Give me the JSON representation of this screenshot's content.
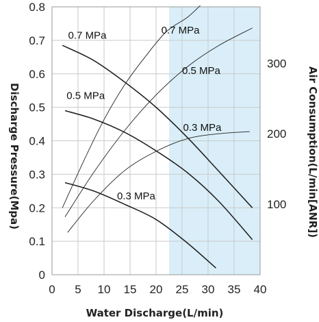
{
  "chart_data": {
    "type": "line",
    "xlabel": "Water Discharge(L/min)",
    "ylabel": "Discharge Pressure(Mpa)",
    "y2label": "Air Consumption(L/min[ANR])",
    "xlim": [
      0,
      40
    ],
    "ylim": [
      0,
      0.8
    ],
    "y2lim": [
      0,
      380
    ],
    "x_ticks": [
      "0",
      "5",
      "10",
      "15",
      "20",
      "25",
      "30",
      "35",
      "40"
    ],
    "y_ticks": [
      "0",
      "0.1",
      "0.2",
      "0.3",
      "0.4",
      "0.5",
      "0.6",
      "0.7",
      "0.8"
    ],
    "y2_ticks": [
      "100",
      "200",
      "300"
    ],
    "grid": true,
    "highlight_region": {
      "x_from": 22.5,
      "x_to": 40,
      "color": "#d9eef8"
    },
    "pressure_series": [
      {
        "name": "0.7 MPa",
        "axis": "left",
        "x": [
          2,
          8,
          14,
          20,
          26,
          32,
          38.5
        ],
        "y": [
          0.685,
          0.64,
          0.575,
          0.5,
          0.41,
          0.31,
          0.2
        ]
      },
      {
        "name": "0.5 MPa",
        "axis": "left",
        "x": [
          2.5,
          8,
          14,
          20,
          26,
          32,
          38.5
        ],
        "y": [
          0.49,
          0.465,
          0.425,
          0.37,
          0.305,
          0.22,
          0.105
        ]
      },
      {
        "name": "0.3 MPa",
        "axis": "left",
        "x": [
          2.5,
          8,
          14,
          20,
          26,
          31.5
        ],
        "y": [
          0.275,
          0.25,
          0.21,
          0.165,
          0.095,
          0.02
        ]
      }
    ],
    "air_series": [
      {
        "name": "0.7 MPa",
        "axis": "right",
        "x": [
          2,
          6,
          10,
          14,
          18,
          22,
          26,
          28.5
        ],
        "y": [
          95,
          160,
          220,
          270,
          310,
          345,
          365,
          382
        ]
      },
      {
        "name": "0.5 MPa",
        "axis": "right",
        "x": [
          2.5,
          8,
          14,
          20,
          26,
          32,
          38.5
        ],
        "y": [
          82,
          145,
          205,
          255,
          295,
          325,
          350
        ]
      },
      {
        "name": "0.3 MPa",
        "axis": "right",
        "x": [
          3,
          8,
          14,
          20,
          26,
          32,
          38
        ],
        "y": [
          60,
          105,
          148,
          175,
          193,
          200,
          203
        ]
      }
    ],
    "labels": [
      {
        "text": "0.7 MPa",
        "series": "pressure",
        "x": 3.1,
        "y": 0.705
      },
      {
        "text": "0.5 MPa",
        "series": "pressure",
        "x": 2.8,
        "y": 0.525
      },
      {
        "text": "0.3 MPa",
        "series": "pressure",
        "x": 12.5,
        "y": 0.225
      },
      {
        "text": "0.7 MPa",
        "series": "air",
        "x": 21.0,
        "y": 0.72
      },
      {
        "text": "0.5 MPa",
        "series": "air",
        "x": 25.0,
        "y": 0.6
      },
      {
        "text": "0.3 MPa",
        "series": "air",
        "x": 25.2,
        "y": 0.43
      }
    ]
  }
}
